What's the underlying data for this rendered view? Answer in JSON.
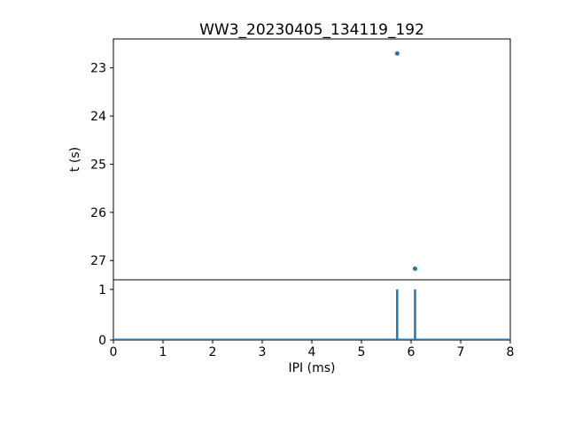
{
  "colors": {
    "accent": "#1f77b4",
    "axis": "#000000",
    "background": "#ffffff"
  },
  "chart_data": [
    {
      "type": "scatter",
      "title": "WW3_20230405_134119_192",
      "xlabel": "",
      "ylabel": "t (s)",
      "xlim": [
        0,
        8
      ],
      "ylim": [
        22.4,
        27.4
      ],
      "y_direction": "increasing-downward",
      "yticks": [
        23,
        24,
        25,
        26,
        27
      ],
      "xtick_labels_shown": false,
      "grid": false,
      "legend": "none",
      "points": [
        {
          "x": 5.72,
          "y": 22.7
        },
        {
          "x": 6.08,
          "y": 27.17
        }
      ]
    },
    {
      "type": "stem",
      "title": "",
      "xlabel": "IPI (ms)",
      "ylabel": "",
      "xlim": [
        0,
        8
      ],
      "ylim": [
        0,
        1.19
      ],
      "xticks": [
        0,
        1,
        2,
        3,
        4,
        5,
        6,
        7,
        8
      ],
      "yticks": [
        0,
        1
      ],
      "grid": false,
      "legend": "none",
      "baseline_y": 0,
      "stems": [
        {
          "x": 5.72,
          "y": 1
        },
        {
          "x": 6.08,
          "y": 1
        }
      ]
    }
  ]
}
